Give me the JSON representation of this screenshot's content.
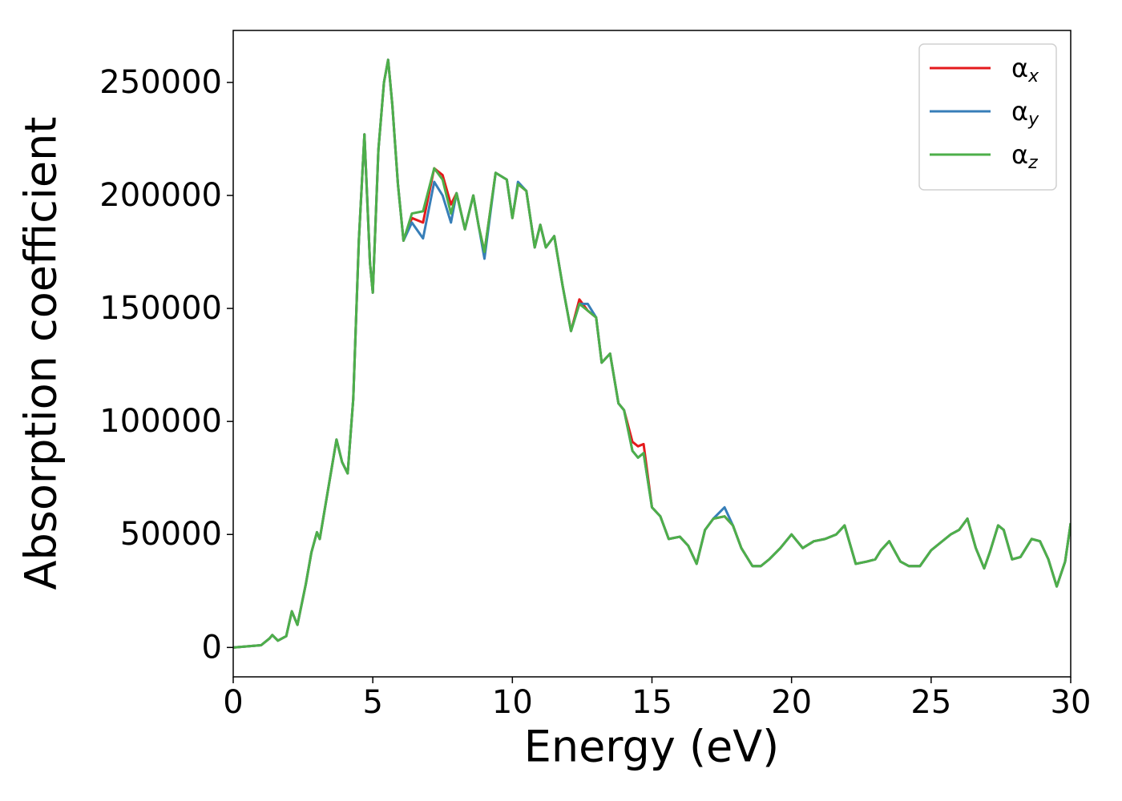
{
  "chart_data": {
    "type": "line",
    "xlabel": "Energy (eV)",
    "ylabel": "Absorption coefficient",
    "xlim": [
      0,
      30
    ],
    "ylim": [
      -13000,
      273000
    ],
    "xticks": [
      0,
      5,
      10,
      15,
      20,
      25,
      30
    ],
    "yticks": [
      0,
      50000,
      100000,
      150000,
      200000,
      250000
    ],
    "grid": false,
    "legend": "upper right",
    "x": [
      0,
      1.0,
      1.3,
      1.4,
      1.6,
      1.9,
      2.1,
      2.3,
      2.6,
      2.8,
      3.0,
      3.1,
      3.4,
      3.7,
      3.9,
      4.1,
      4.3,
      4.5,
      4.7,
      4.9,
      5.0,
      5.2,
      5.4,
      5.55,
      5.7,
      5.9,
      6.1,
      6.4,
      6.8,
      7.2,
      7.5,
      7.8,
      8.0,
      8.3,
      8.6,
      8.8,
      9.0,
      9.4,
      9.8,
      10.0,
      10.2,
      10.5,
      10.8,
      11.0,
      11.2,
      11.5,
      11.8,
      12.1,
      12.4,
      12.7,
      13.0,
      13.2,
      13.5,
      13.8,
      14.0,
      14.3,
      14.5,
      14.7,
      15.0,
      15.3,
      15.6,
      16.0,
      16.3,
      16.6,
      16.9,
      17.2,
      17.6,
      17.9,
      18.2,
      18.6,
      18.9,
      19.2,
      19.6,
      20.0,
      20.4,
      20.8,
      21.2,
      21.6,
      21.9,
      22.3,
      22.7,
      23.0,
      23.2,
      23.5,
      23.9,
      24.2,
      24.6,
      25.0,
      25.3,
      25.7,
      26.0,
      26.3,
      26.6,
      26.9,
      27.1,
      27.4,
      27.6,
      27.9,
      28.2,
      28.6,
      28.9,
      29.2,
      29.5,
      29.8,
      30.0
    ],
    "series": [
      {
        "name": "αx",
        "color": "#e41a1c",
        "values": [
          0,
          1000,
          4000,
          5500,
          3000,
          5000,
          16000,
          10000,
          28000,
          42000,
          51000,
          48000,
          70000,
          92000,
          82000,
          77000,
          110000,
          180000,
          227000,
          170000,
          157000,
          220000,
          250000,
          260000,
          240000,
          205000,
          180000,
          190000,
          188000,
          212000,
          209000,
          196000,
          201000,
          185000,
          200000,
          186000,
          175000,
          210000,
          207000,
          190000,
          205000,
          202000,
          177000,
          187000,
          177000,
          182000,
          160000,
          140000,
          154000,
          149000,
          146000,
          126000,
          130000,
          108000,
          105000,
          91000,
          89000,
          90000,
          62000,
          58000,
          48000,
          49000,
          45000,
          37000,
          52000,
          57000,
          58000,
          54000,
          44000,
          36000,
          36000,
          39000,
          44000,
          50000,
          44000,
          47000,
          48000,
          50000,
          54000,
          37000,
          38000,
          39000,
          43000,
          47000,
          38000,
          36000,
          36000,
          43000,
          46000,
          50000,
          52000,
          57000,
          44000,
          35000,
          42000,
          54000,
          52000,
          39000,
          40000,
          48000,
          47000,
          39000,
          27000,
          38000,
          55000
        ]
      },
      {
        "name": "αy",
        "color": "#377eb8",
        "values": [
          0,
          1000,
          4000,
          5500,
          3000,
          5000,
          16000,
          10000,
          28000,
          42000,
          51000,
          48000,
          70000,
          92000,
          82000,
          77000,
          110000,
          180000,
          227000,
          170000,
          157000,
          220000,
          250000,
          260000,
          240000,
          205000,
          180000,
          188000,
          181000,
          206000,
          200000,
          188000,
          201000,
          185000,
          200000,
          186000,
          172000,
          210000,
          207000,
          190000,
          206000,
          202000,
          177000,
          187000,
          177000,
          182000,
          160000,
          140000,
          152000,
          152000,
          146000,
          126000,
          130000,
          108000,
          105000,
          87000,
          84000,
          86000,
          62000,
          58000,
          48000,
          49000,
          45000,
          37000,
          52000,
          57000,
          62000,
          54000,
          44000,
          36000,
          36000,
          39000,
          44000,
          50000,
          44000,
          47000,
          48000,
          50000,
          54000,
          37000,
          38000,
          39000,
          43000,
          47000,
          38000,
          36000,
          36000,
          43000,
          46000,
          50000,
          52000,
          57000,
          44000,
          35000,
          42000,
          54000,
          52000,
          39000,
          40000,
          48000,
          47000,
          39000,
          27000,
          38000,
          55000
        ]
      },
      {
        "name": "αz",
        "color": "#4daf4a",
        "values": [
          0,
          1000,
          4000,
          5500,
          3000,
          5000,
          16000,
          10000,
          28000,
          42000,
          51000,
          48000,
          70000,
          92000,
          82000,
          77000,
          110000,
          180000,
          227000,
          170000,
          157000,
          220000,
          250000,
          260000,
          240000,
          205000,
          180000,
          192000,
          193000,
          212000,
          207000,
          192000,
          201000,
          185000,
          200000,
          186000,
          175000,
          210000,
          207000,
          190000,
          205000,
          202000,
          177000,
          187000,
          177000,
          182000,
          160000,
          140000,
          152000,
          149000,
          146000,
          126000,
          130000,
          108000,
          105000,
          87000,
          84000,
          86000,
          62000,
          58000,
          48000,
          49000,
          45000,
          37000,
          52000,
          57000,
          58000,
          54000,
          44000,
          36000,
          36000,
          39000,
          44000,
          50000,
          44000,
          47000,
          48000,
          50000,
          54000,
          37000,
          38000,
          39000,
          43000,
          47000,
          38000,
          36000,
          36000,
          43000,
          46000,
          50000,
          52000,
          57000,
          44000,
          35000,
          42000,
          54000,
          52000,
          39000,
          40000,
          48000,
          47000,
          39000,
          27000,
          38000,
          55000
        ]
      }
    ]
  }
}
